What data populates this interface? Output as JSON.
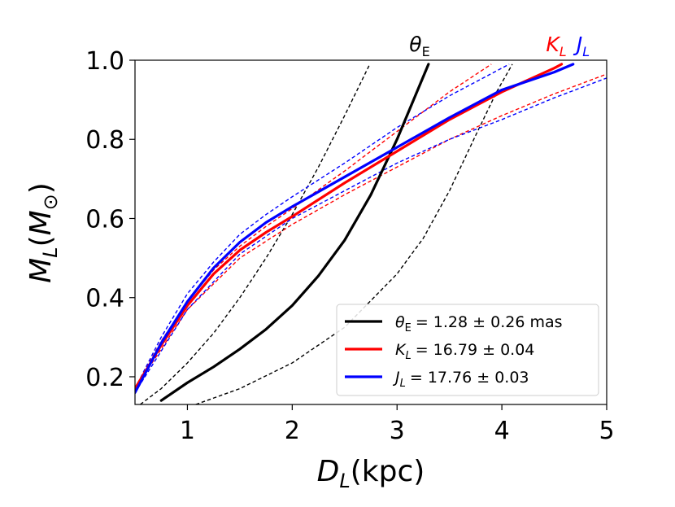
{
  "chart_data": {
    "type": "line",
    "title": "",
    "xlabel": "D_L(kpc)",
    "ylabel": "M_L(M_⊙)",
    "xlim": [
      0.5,
      5.0
    ],
    "ylim": [
      0.13,
      1.0
    ],
    "xticks": [
      1,
      2,
      3,
      4,
      5
    ],
    "yticks": [
      0.2,
      0.4,
      0.6,
      0.8,
      1.0
    ],
    "xtick_labels": [
      "1",
      "2",
      "3",
      "4",
      "5"
    ],
    "ytick_labels": [
      "0.2",
      "0.4",
      "0.6",
      "0.8",
      "1.0"
    ],
    "legend_position": "lower-right",
    "top_labels": [
      {
        "text": "θE",
        "color": "#000000",
        "series": "theta_E"
      },
      {
        "text": "KL",
        "color": "#ff0000",
        "series": "K_L"
      },
      {
        "text": "JL",
        "color": "#0000ff",
        "series": "J_L"
      }
    ],
    "series": [
      {
        "id": "theta_E",
        "name": "θE = 1.28 ± 0.26 mas",
        "legend_main": "θ",
        "legend_sub": "E",
        "legend_value": "= 1.28 ± 0.26 mas",
        "color": "#000000",
        "style": "solid",
        "x": [
          0.75,
          1.0,
          1.25,
          1.5,
          1.75,
          2.0,
          2.25,
          2.5,
          2.75,
          3.0,
          3.3
        ],
        "y": [
          0.14,
          0.185,
          0.225,
          0.27,
          0.32,
          0.38,
          0.455,
          0.545,
          0.66,
          0.8,
          0.99
        ]
      },
      {
        "id": "theta_E_upper",
        "name": "θE +1σ",
        "color": "#000000",
        "style": "dashed",
        "x": [
          0.55,
          0.75,
          1.0,
          1.25,
          1.5,
          1.75,
          2.0,
          2.25,
          2.5,
          2.74
        ],
        "y": [
          0.13,
          0.17,
          0.235,
          0.31,
          0.4,
          0.5,
          0.61,
          0.73,
          0.86,
          0.99
        ]
      },
      {
        "id": "theta_E_lower",
        "name": "θE -1σ",
        "color": "#000000",
        "style": "dashed",
        "x": [
          1.08,
          1.5,
          2.0,
          2.5,
          3.0,
          3.25,
          3.5,
          3.75,
          3.95,
          4.1
        ],
        "y": [
          0.13,
          0.17,
          0.235,
          0.325,
          0.46,
          0.55,
          0.67,
          0.81,
          0.92,
          0.99
        ]
      },
      {
        "id": "K_L",
        "name": "KL = 16.79 ± 0.04",
        "legend_main": "K",
        "legend_sub": "L",
        "legend_value": "= 16.79 ± 0.04",
        "color": "#ff0000",
        "style": "solid",
        "x": [
          0.5,
          0.75,
          1.0,
          1.25,
          1.5,
          1.75,
          2.0,
          2.5,
          3.0,
          3.5,
          4.0,
          4.5,
          4.57
        ],
        "y": [
          0.17,
          0.28,
          0.38,
          0.46,
          0.52,
          0.565,
          0.605,
          0.69,
          0.77,
          0.85,
          0.92,
          0.98,
          0.99
        ]
      },
      {
        "id": "K_L_upper",
        "name": "KL +1σ",
        "color": "#ff0000",
        "style": "dashed",
        "x": [
          0.5,
          0.75,
          1.0,
          1.25,
          1.5,
          1.75,
          2.0,
          2.5,
          3.0,
          3.5,
          3.9
        ],
        "y": [
          0.17,
          0.29,
          0.39,
          0.47,
          0.53,
          0.58,
          0.625,
          0.72,
          0.82,
          0.92,
          0.99
        ]
      },
      {
        "id": "K_L_lower",
        "name": "KL -1σ",
        "color": "#ff0000",
        "style": "dashed",
        "x": [
          0.5,
          1.0,
          1.5,
          2.0,
          2.5,
          3.0,
          3.5,
          4.0,
          4.5,
          5.0
        ],
        "y": [
          0.17,
          0.37,
          0.5,
          0.585,
          0.66,
          0.73,
          0.8,
          0.86,
          0.915,
          0.965
        ]
      },
      {
        "id": "J_L",
        "name": "JL = 17.76 ± 0.03",
        "legend_main": "J",
        "legend_sub": "L",
        "legend_value": "= 17.76 ± 0.03",
        "color": "#0000ff",
        "style": "solid",
        "x": [
          0.5,
          0.75,
          1.0,
          1.25,
          1.5,
          1.75,
          2.0,
          2.5,
          3.0,
          3.5,
          4.0,
          4.5,
          4.68
        ],
        "y": [
          0.16,
          0.285,
          0.39,
          0.475,
          0.54,
          0.59,
          0.63,
          0.705,
          0.78,
          0.855,
          0.925,
          0.97,
          0.99
        ]
      },
      {
        "id": "J_L_upper",
        "name": "JL +1σ",
        "color": "#0000ff",
        "style": "dashed",
        "x": [
          0.5,
          0.75,
          1.0,
          1.25,
          1.5,
          1.75,
          2.0,
          2.5,
          3.0,
          3.5,
          4.07
        ],
        "y": [
          0.17,
          0.3,
          0.41,
          0.49,
          0.56,
          0.61,
          0.655,
          0.74,
          0.83,
          0.91,
          0.99
        ]
      },
      {
        "id": "J_L_lower",
        "name": "JL -1σ",
        "color": "#0000ff",
        "style": "dashed",
        "x": [
          0.5,
          1.0,
          1.5,
          2.0,
          2.5,
          3.0,
          3.5,
          4.0,
          4.5,
          5.0
        ],
        "y": [
          0.16,
          0.37,
          0.51,
          0.6,
          0.67,
          0.74,
          0.8,
          0.85,
          0.905,
          0.955
        ]
      }
    ]
  }
}
